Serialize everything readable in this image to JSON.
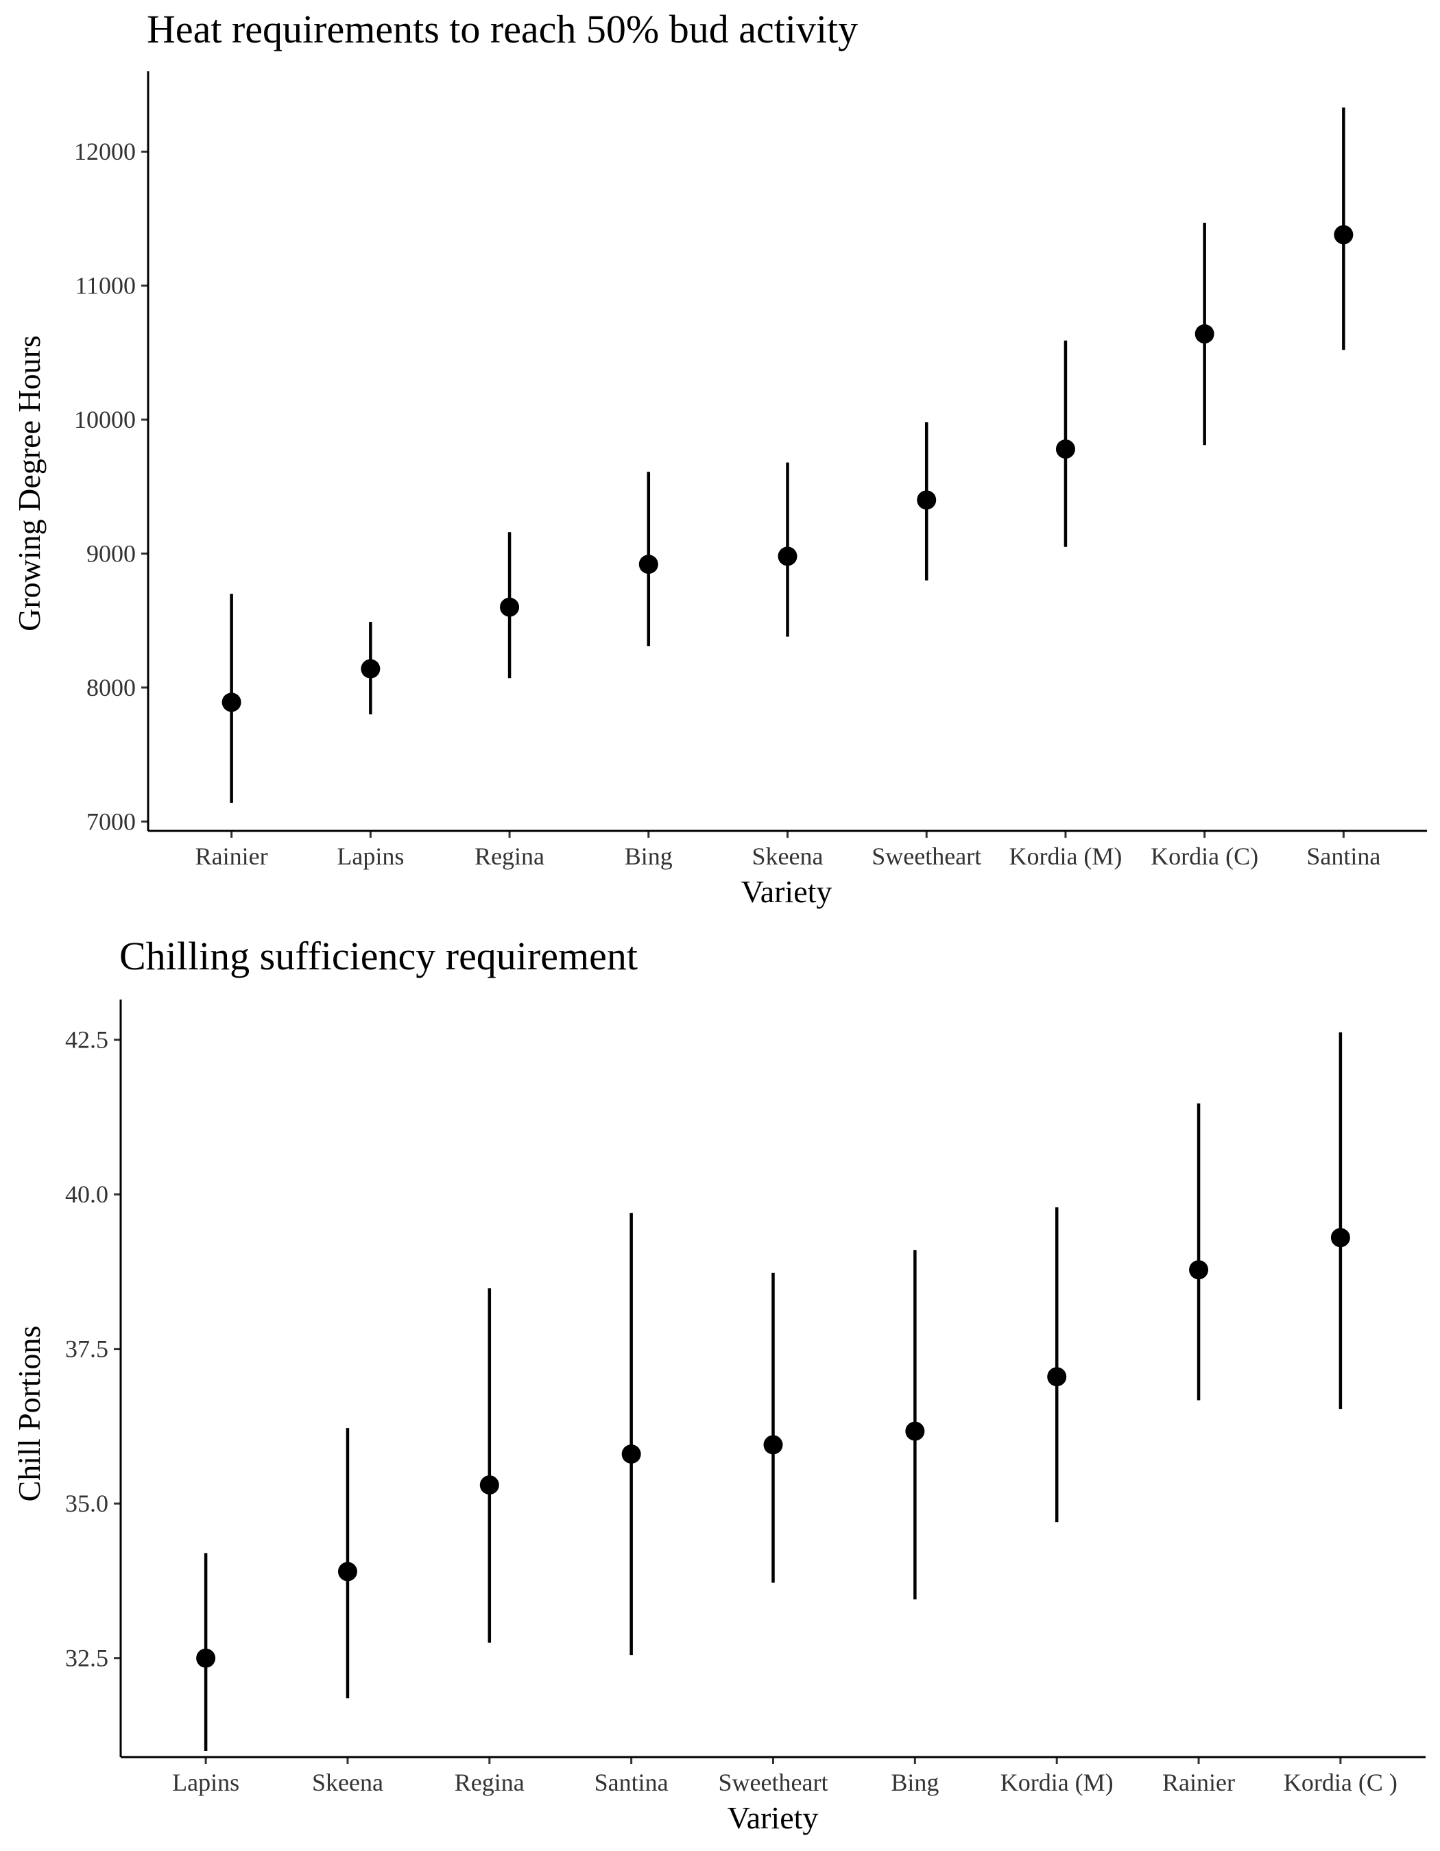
{
  "chart_data": [
    {
      "type": "scatter",
      "subtype": "point-range",
      "title": "Heat requirements to reach 50% bud activity",
      "xlabel": "Variety",
      "ylabel": "Growing Degree Hours",
      "categories": [
        "Rainier",
        "Lapins",
        "Regina",
        "Bing",
        "Skeena",
        "Sweetheart",
        "Kordia (M)",
        "Kordia (C)",
        "Santina"
      ],
      "values": [
        7890,
        8140,
        8600,
        8920,
        8980,
        9400,
        9780,
        10640,
        11380
      ],
      "lower": [
        7140,
        7800,
        8070,
        8310,
        8380,
        8800,
        9050,
        9810,
        10520
      ],
      "upper": [
        8700,
        8490,
        9160,
        9610,
        9680,
        9980,
        10590,
        11470,
        12330
      ],
      "ylim": [
        6930,
        12600
      ],
      "yticks": [
        7000,
        8000,
        9000,
        10000,
        11000,
        12000
      ],
      "ytick_labels": [
        "7000",
        "8000",
        "9000",
        "10000",
        "11000",
        "12000"
      ],
      "grid": false,
      "legend": "none"
    },
    {
      "type": "scatter",
      "subtype": "point-range",
      "title": "Chilling sufficiency requirement",
      "xlabel": "Variety",
      "ylabel": "Chill Portions",
      "categories": [
        "Lapins",
        "Skeena",
        "Regina",
        "Santina",
        "Sweetheart",
        "Bing",
        "Kordia (M)",
        "Rainier",
        "Kordia (C )"
      ],
      "values": [
        32.5,
        33.9,
        35.3,
        35.8,
        35.95,
        36.17,
        37.05,
        38.78,
        39.3
      ],
      "lower": [
        31.0,
        31.85,
        32.75,
        32.55,
        33.72,
        33.45,
        34.7,
        36.67,
        36.53
      ],
      "upper": [
        34.2,
        36.22,
        38.48,
        39.7,
        38.73,
        39.1,
        39.79,
        41.47,
        42.62
      ],
      "ylim": [
        30.9,
        43.15
      ],
      "yticks": [
        32.5,
        35.0,
        37.5,
        40.0,
        42.5
      ],
      "ytick_labels": [
        "32.5",
        "35.0",
        "37.5",
        "40.0",
        "42.5"
      ],
      "grid": false,
      "legend": "none"
    }
  ]
}
